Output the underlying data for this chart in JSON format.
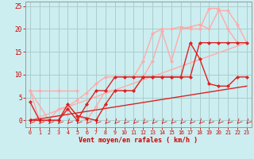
{
  "bg_color": "#cceef0",
  "grid_color": "#aacccc",
  "xlabel": "Vent moyen/en rafales ( km/h )",
  "xlabel_color": "#cc0000",
  "tick_color": "#cc0000",
  "xlim": [
    -0.5,
    23.5
  ],
  "ylim": [
    -1.5,
    26
  ],
  "yticks": [
    0,
    5,
    10,
    15,
    20,
    25
  ],
  "xticks": [
    0,
    1,
    2,
    3,
    4,
    5,
    6,
    7,
    8,
    9,
    10,
    11,
    12,
    13,
    14,
    15,
    16,
    17,
    18,
    19,
    20,
    21,
    22,
    23
  ],
  "series": [
    {
      "x": [
        0,
        1,
        3,
        5
      ],
      "y": [
        6.5,
        6.5,
        6.5,
        6.5
      ],
      "color": "#ffaaaa",
      "lw": 1.0,
      "marker": "D",
      "ms": 2.0
    },
    {
      "x": [
        0,
        1,
        2,
        3,
        4,
        5,
        6,
        7,
        8,
        9,
        10,
        11,
        12,
        13,
        14,
        15,
        16,
        17,
        18,
        19,
        20,
        21,
        22,
        23
      ],
      "y": [
        6.5,
        0,
        0,
        2.5,
        3,
        4.5,
        6,
        8,
        9.5,
        9.5,
        9.5,
        9.5,
        13,
        19,
        20,
        20,
        20.5,
        20,
        20,
        24.5,
        24.5,
        20,
        17,
        17
      ],
      "color": "#ffaaaa",
      "lw": 1.0,
      "marker": "D",
      "ms": 2.0
    },
    {
      "x": [
        0,
        2,
        3,
        4,
        5,
        6,
        7,
        8,
        9,
        10,
        11,
        12,
        13,
        14,
        15,
        16,
        17,
        18,
        19,
        20,
        21,
        22,
        23
      ],
      "y": [
        6.5,
        0,
        0,
        3.5,
        1,
        0,
        3,
        6.5,
        6.5,
        6.5,
        6.5,
        9.5,
        13,
        19.5,
        13,
        20,
        20.5,
        21,
        20,
        24,
        24,
        21,
        17
      ],
      "color": "#ffaaaa",
      "lw": 1.0,
      "marker": "D",
      "ms": 2.0
    },
    {
      "x": [
        0,
        23
      ],
      "y": [
        0,
        17
      ],
      "color": "#ffaaaa",
      "lw": 1.0,
      "marker": null,
      "ms": 0
    },
    {
      "x": [
        0,
        23
      ],
      "y": [
        0,
        7.5
      ],
      "color": "#dd2222",
      "lw": 1.0,
      "marker": null,
      "ms": 0
    },
    {
      "x": [
        0,
        1,
        2,
        3,
        4,
        5,
        6,
        7,
        8,
        9,
        10,
        11,
        12,
        13,
        14,
        15,
        16,
        17,
        18,
        19,
        20,
        21,
        22,
        23
      ],
      "y": [
        4,
        0,
        0,
        0,
        3.5,
        1,
        0.5,
        0,
        3.5,
        6.5,
        6.5,
        6.5,
        9.5,
        9.5,
        9.5,
        9.5,
        9.5,
        17,
        13.5,
        8,
        7.5,
        7.5,
        9.5,
        9.5
      ],
      "color": "#dd2222",
      "lw": 1.0,
      "marker": "D",
      "ms": 2.0
    },
    {
      "x": [
        0,
        3,
        4,
        5,
        6,
        7,
        8,
        9,
        10,
        11,
        12,
        13,
        14,
        15,
        16,
        17,
        18,
        19,
        20,
        21,
        22,
        23
      ],
      "y": [
        0,
        0,
        2.5,
        0,
        3.5,
        6.5,
        6.5,
        9.5,
        9.5,
        9.5,
        9.5,
        9.5,
        9.5,
        9.5,
        9.5,
        9.5,
        17,
        17,
        17,
        17,
        17,
        17
      ],
      "color": "#dd2222",
      "lw": 1.0,
      "marker": "D",
      "ms": 2.0
    }
  ]
}
